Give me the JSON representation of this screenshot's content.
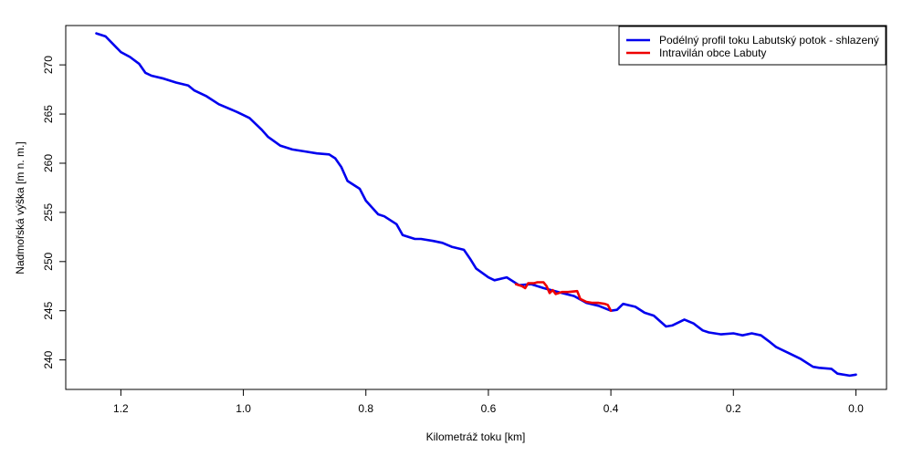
{
  "chart_data": {
    "type": "line",
    "xlabel": "Kilometráž toku [km]",
    "ylabel": "Nadmořská výška [m n. m.]",
    "xlim": [
      1.29,
      -0.05
    ],
    "ylim": [
      237.0,
      274.0
    ],
    "x_reversed": true,
    "grid": false,
    "legend_position": "top-right",
    "x_ticks": [
      1.2,
      1.0,
      0.8,
      0.6,
      0.4,
      0.2,
      0.0
    ],
    "x_tick_labels": [
      "1.2",
      "1.0",
      "0.8",
      "0.6",
      "0.4",
      "0.2",
      "0.0"
    ],
    "y_ticks": [
      240,
      245,
      250,
      255,
      260,
      265,
      270
    ],
    "y_tick_labels": [
      "240",
      "245",
      "250",
      "255",
      "260",
      "265",
      "270"
    ],
    "series": [
      {
        "name": "Podélný profil toku Labutský potok - shlazený",
        "color": "#0000ee",
        "x": [
          1.24,
          1.225,
          1.2,
          1.185,
          1.17,
          1.16,
          1.15,
          1.13,
          1.11,
          1.09,
          1.08,
          1.06,
          1.04,
          1.01,
          0.99,
          0.97,
          0.96,
          0.94,
          0.92,
          0.9,
          0.88,
          0.86,
          0.85,
          0.84,
          0.83,
          0.81,
          0.8,
          0.78,
          0.77,
          0.75,
          0.74,
          0.72,
          0.71,
          0.69,
          0.675,
          0.66,
          0.64,
          0.63,
          0.62,
          0.6,
          0.59,
          0.57,
          0.55,
          0.53,
          0.51,
          0.48,
          0.46,
          0.44,
          0.42,
          0.4,
          0.39,
          0.38,
          0.36,
          0.345,
          0.33,
          0.31,
          0.3,
          0.28,
          0.265,
          0.25,
          0.24,
          0.22,
          0.2,
          0.185,
          0.17,
          0.155,
          0.14,
          0.13,
          0.11,
          0.09,
          0.07,
          0.06,
          0.04,
          0.03,
          0.01,
          0.0
        ],
        "y": [
          273.2,
          272.9,
          271.3,
          270.8,
          270.1,
          269.2,
          268.9,
          268.6,
          268.2,
          267.9,
          267.4,
          266.8,
          266.0,
          265.2,
          264.6,
          263.4,
          262.7,
          261.8,
          261.4,
          261.2,
          261.0,
          260.9,
          260.5,
          259.6,
          258.2,
          257.4,
          256.2,
          254.8,
          254.6,
          253.8,
          252.7,
          252.3,
          252.3,
          252.1,
          251.9,
          251.5,
          251.2,
          250.3,
          249.3,
          248.4,
          248.1,
          248.4,
          247.6,
          247.7,
          247.3,
          246.8,
          246.5,
          245.8,
          245.5,
          245.0,
          245.1,
          245.7,
          245.4,
          244.8,
          244.5,
          243.4,
          243.5,
          244.1,
          243.7,
          243.0,
          242.8,
          242.6,
          242.7,
          242.5,
          242.7,
          242.5,
          241.8,
          241.3,
          240.7,
          240.1,
          239.3,
          239.2,
          239.1,
          238.6,
          238.4,
          238.5
        ]
      },
      {
        "name": "Intravilán obce Labuty",
        "color": "#ee0000",
        "x": [
          0.555,
          0.545,
          0.54,
          0.535,
          0.53,
          0.525,
          0.52,
          0.51,
          0.505,
          0.5,
          0.495,
          0.49,
          0.485,
          0.48,
          0.47,
          0.455,
          0.45,
          0.44,
          0.43,
          0.42,
          0.41,
          0.405,
          0.4
        ],
        "y": [
          247.7,
          247.5,
          247.3,
          247.8,
          247.8,
          247.8,
          247.9,
          247.9,
          247.5,
          246.8,
          247.1,
          246.7,
          246.8,
          246.9,
          246.9,
          247.0,
          246.2,
          245.9,
          245.8,
          245.8,
          245.7,
          245.6,
          245.0
        ]
      }
    ]
  }
}
